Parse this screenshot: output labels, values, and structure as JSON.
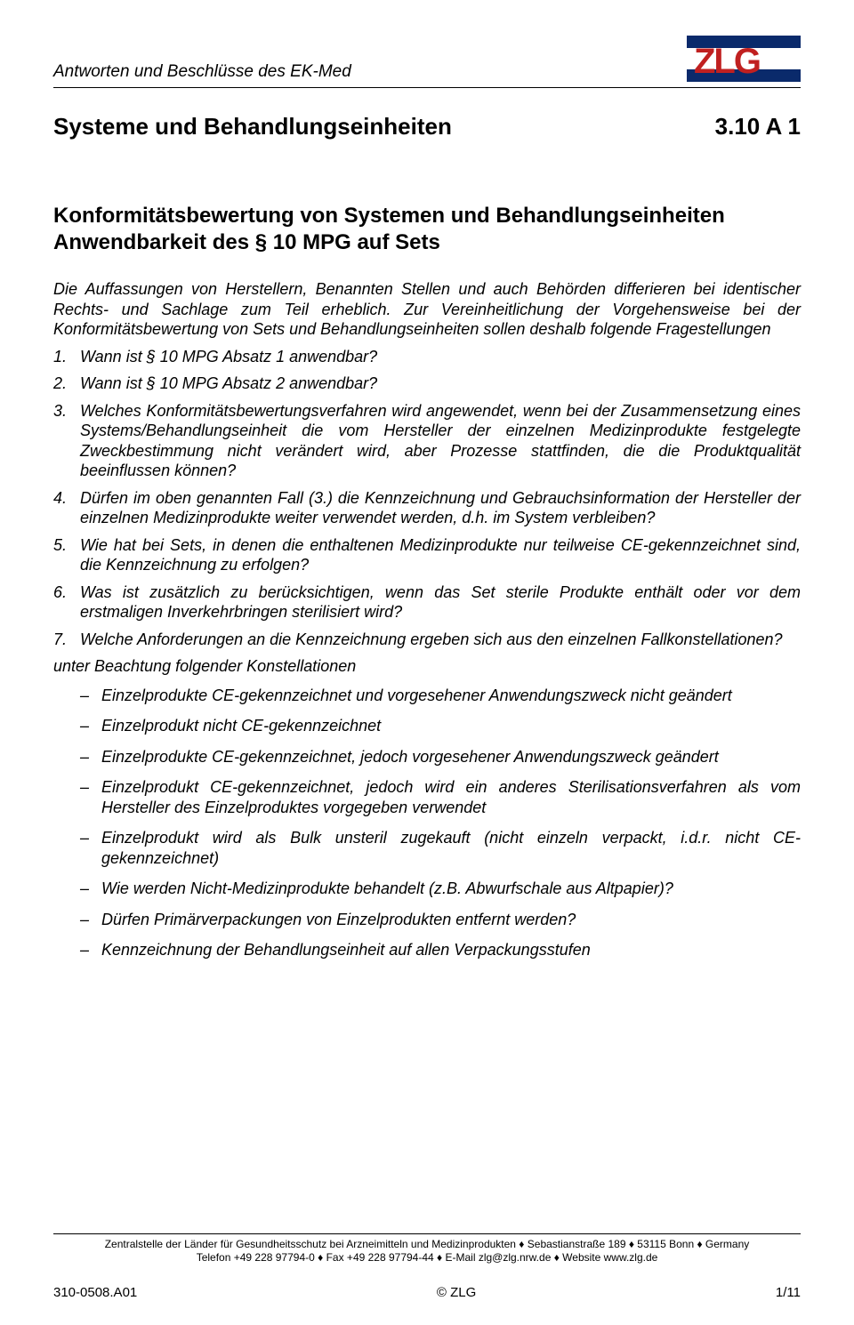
{
  "header": {
    "doc_header": "Antworten und Beschlüsse des EK-Med",
    "logo": {
      "text": "ZLG",
      "bar_color": "#0a2a6b",
      "text_color": "#c02020"
    }
  },
  "title": {
    "main": "Systeme und Behandlungseinheiten",
    "code": "3.10  A 1"
  },
  "section_heading": "Konformitätsbewertung von Systemen und Behandlungs­einheiten Anwendbarkeit des § 10 MPG auf Sets",
  "intro": "Die Auffassungen von Herstellern, Benannten Stellen und auch Behörden differieren bei identischer Rechts- und Sachlage zum Teil erheblich. Zur Vereinheitlichung der Vorgehensweise bei der Konformitätsbewertung von Sets und Behandlungseinheiten sollen deshalb folgende Fragestellungen",
  "questions": [
    {
      "n": "1.",
      "t": "Wann ist § 10 MPG Absatz 1 anwendbar?"
    },
    {
      "n": "2.",
      "t": "Wann ist § 10 MPG Absatz 2 anwendbar?"
    },
    {
      "n": "3.",
      "t": "Welches Konformitätsbewertungsverfahren wird angewendet, wenn bei der Zusammensetzung eines Systems/Behandlungseinheit die vom Hersteller der einzelnen Medizinprodukte festgelegte Zweckbestimmung nicht verändert wird, aber Prozesse stattfinden, die die Produktqualität beeinflussen können?"
    },
    {
      "n": "4.",
      "t": "Dürfen im oben genannten Fall (3.) die Kennzeichnung und Gebrauchsinformation der Hersteller der einzelnen Medizinprodukte weiter verwendet werden, d.h. im System verbleiben?"
    },
    {
      "n": "5.",
      "t": "Wie hat bei Sets, in denen die enthaltenen Medizinprodukte nur teilweise CE-gekennzeichnet sind, die Kennzeichnung zu erfolgen?"
    },
    {
      "n": "6.",
      "t": "Was ist zusätzlich zu berücksichtigen, wenn das Set sterile Produkte enthält oder vor dem erstmaligen Inverkehrbringen sterilisiert wird?"
    },
    {
      "n": "7.",
      "t": "Welche Anforderungen an die Kennzeichnung ergeben sich aus den einzelnen Fallkonstellationen?"
    }
  ],
  "subhead": "unter Beachtung folgender Konstellationen",
  "bullets": [
    "Einzelprodukte CE-gekennzeichnet und vorgesehener Anwendungszweck nicht geändert",
    "Einzelprodukt nicht CE-gekennzeichnet",
    "Einzelprodukte CE-gekennzeichnet, jedoch vorgesehener Anwendungszweck geändert",
    "Einzelprodukt CE-gekennzeichnet, jedoch wird ein anderes Sterilisationsverfahren als vom Hersteller des Einzelproduktes vorgegeben verwendet",
    "Einzelprodukt wird als Bulk unsteril zugekauft (nicht einzeln verpackt, i.d.r. nicht CE-gekennzeichnet)",
    "Wie werden Nicht-Medizinprodukte behandelt (z.B. Abwurfschale aus Altpapier)?",
    "Dürfen Primärverpackungen von Einzelprodukten entfernt werden?",
    "Kennzeichnung der Behandlungseinheit auf allen Verpackungsstufen"
  ],
  "footer": {
    "line1": "Zentralstelle der Länder für Gesundheitsschutz bei Arzneimitteln und Medizinprodukten ♦ Sebastianstraße 189 ♦ 53115 Bonn ♦ Germany",
    "line2": "Telefon +49 228 97794-0 ♦ Fax +49 228 97794-44 ♦ E-Mail zlg@zlg.nrw.de ♦ Website www.zlg.de",
    "left": "310-0508.A01",
    "center": "© ZLG",
    "right": "1/11"
  }
}
